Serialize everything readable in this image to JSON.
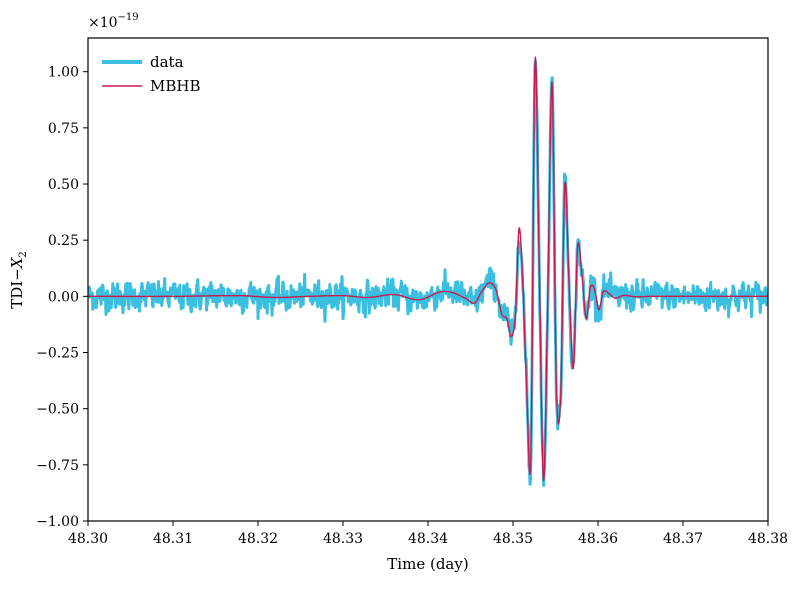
{
  "chart_data": {
    "type": "line",
    "title": "",
    "xlabel": "Time (day)",
    "ylabel": "TDI−X2",
    "ylabel_main": "TDI−",
    "ylabel_var": "X",
    "ylabel_sub": "2",
    "y_scale_multiplier": "×10−19",
    "y_scale_prefix": "×10",
    "y_scale_exponent": "−19",
    "xlim": [
      48.3,
      48.38
    ],
    "ylim": [
      -1.0,
      1.15
    ],
    "x_ticks": [
      48.3,
      48.31,
      48.32,
      48.33,
      48.34,
      48.35,
      48.36,
      48.37,
      48.38
    ],
    "x_tick_labels": [
      "48.30",
      "48.31",
      "48.32",
      "48.33",
      "48.34",
      "48.35",
      "48.36",
      "48.37",
      "48.38"
    ],
    "y_ticks": [
      -1.0,
      -0.75,
      -0.5,
      -0.25,
      0.0,
      0.25,
      0.5,
      0.75,
      1.0
    ],
    "y_tick_labels": [
      "−1.00",
      "−0.75",
      "−0.50",
      "−0.25",
      "0.00",
      "0.25",
      "0.50",
      "0.75",
      "1.00"
    ],
    "grid": false,
    "legend_position": "top-left",
    "series": [
      {
        "name": "data",
        "color": "#3bbfe0",
        "noise_amplitude": 0.03
      },
      {
        "name": "MBHB",
        "color": "#c51b4e",
        "signal": {
          "x": [
            48.3,
            48.31,
            48.318,
            48.322,
            48.326,
            48.33,
            48.333,
            48.336,
            48.339,
            48.3415,
            48.343,
            48.3445,
            48.3455,
            48.3463,
            48.3472,
            48.348,
            48.3487,
            48.3493,
            48.3498,
            48.3503,
            48.3507,
            48.3511,
            48.3516,
            48.3521,
            48.3526,
            48.3531,
            48.3536,
            48.3541,
            48.3546,
            48.3551,
            48.3556,
            48.3561,
            48.3566,
            48.3571,
            48.3576,
            48.3581,
            48.3586,
            48.3591,
            48.3596,
            48.3601,
            48.3606,
            48.3612,
            48.362,
            48.363,
            48.3645,
            48.366,
            48.38
          ],
          "y": [
            0.0,
            0.0,
            0.003,
            -0.005,
            0.0,
            0.003,
            -0.005,
            0.008,
            -0.015,
            0.02,
            0.015,
            -0.01,
            -0.03,
            0.02,
            0.06,
            0.03,
            -0.08,
            -0.1,
            -0.18,
            -0.08,
            0.3,
            0.1,
            -0.4,
            -0.72,
            1.05,
            0.1,
            -0.82,
            0.0,
            0.95,
            -0.4,
            -0.45,
            0.5,
            0.05,
            -0.32,
            0.22,
            0.1,
            -0.1,
            0.04,
            0.03,
            -0.06,
            0.02,
            0.015,
            -0.008,
            0.004,
            -0.002,
            0.0,
            0.0
          ]
        }
      }
    ]
  }
}
